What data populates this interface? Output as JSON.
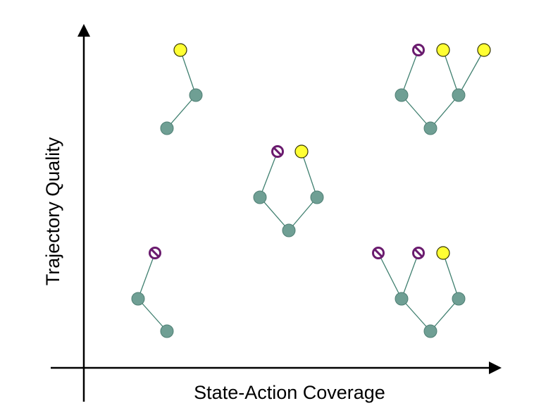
{
  "axes": {
    "x_label": "State-Action Coverage",
    "y_label": "Trajectory Quality"
  },
  "colors": {
    "axis": "#000000",
    "state_node": "#6f9f94",
    "state_node_stroke": "#4f7f74",
    "edge": "#3f7f6f",
    "success_leaf": "#ffff33",
    "success_leaf_stroke": "#333300",
    "failure_leaf": "#6a1b6e"
  },
  "legend_semantics": {
    "state_node": "teal circle",
    "success_leaf": "yellow circle",
    "failure_leaf": "purple prohibited circle"
  },
  "trees": [
    {
      "name": "top-left-tree",
      "description_levels": "root → one branch → success leaf",
      "nodes": [
        {
          "id": "root",
          "kind": "state"
        },
        {
          "id": "mid",
          "kind": "state"
        },
        {
          "id": "leaf",
          "kind": "success"
        }
      ],
      "edges": [
        [
          "root",
          "mid"
        ],
        [
          "mid",
          "leaf"
        ]
      ]
    },
    {
      "name": "center-tree",
      "description_levels": "root → two branches → failure & success leaves",
      "nodes": [
        {
          "id": "root",
          "kind": "state"
        },
        {
          "id": "left",
          "kind": "state"
        },
        {
          "id": "right",
          "kind": "state"
        },
        {
          "id": "leaf-l",
          "kind": "failure"
        },
        {
          "id": "leaf-r",
          "kind": "success"
        }
      ],
      "edges": [
        [
          "root",
          "left"
        ],
        [
          "root",
          "right"
        ],
        [
          "left",
          "leaf-l"
        ],
        [
          "right",
          "leaf-r"
        ]
      ]
    },
    {
      "name": "top-right-tree",
      "description_levels": "root → two branches → failure, success, success leaves",
      "nodes": [
        {
          "id": "root",
          "kind": "state"
        },
        {
          "id": "left",
          "kind": "state"
        },
        {
          "id": "right",
          "kind": "state"
        },
        {
          "id": "leaf-1",
          "kind": "failure"
        },
        {
          "id": "leaf-2",
          "kind": "success"
        },
        {
          "id": "leaf-3",
          "kind": "success"
        }
      ],
      "edges": [
        [
          "root",
          "left"
        ],
        [
          "root",
          "right"
        ],
        [
          "left",
          "leaf-1"
        ],
        [
          "right",
          "leaf-2"
        ],
        [
          "right",
          "leaf-3"
        ]
      ]
    },
    {
      "name": "bottom-left-tree",
      "description_levels": "root → one branch → failure leaf",
      "nodes": [
        {
          "id": "root",
          "kind": "state"
        },
        {
          "id": "mid",
          "kind": "state"
        },
        {
          "id": "leaf",
          "kind": "failure"
        }
      ],
      "edges": [
        [
          "root",
          "mid"
        ],
        [
          "mid",
          "leaf"
        ]
      ]
    },
    {
      "name": "bottom-right-tree",
      "description_levels": "root → two branches → failure, failure, success leaves",
      "nodes": [
        {
          "id": "root",
          "kind": "state"
        },
        {
          "id": "left",
          "kind": "state"
        },
        {
          "id": "right",
          "kind": "state"
        },
        {
          "id": "leaf-1",
          "kind": "failure"
        },
        {
          "id": "leaf-2",
          "kind": "failure"
        },
        {
          "id": "leaf-3",
          "kind": "success"
        }
      ],
      "edges": [
        [
          "root",
          "left"
        ],
        [
          "root",
          "right"
        ],
        [
          "left",
          "leaf-1"
        ],
        [
          "left",
          "leaf-2"
        ],
        [
          "right",
          "leaf-3"
        ]
      ]
    }
  ]
}
